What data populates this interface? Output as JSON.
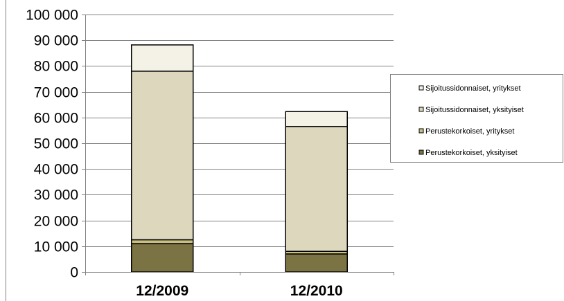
{
  "chart_data": {
    "type": "bar",
    "stacked": true,
    "categories": [
      "12/2009",
      "12/2010"
    ],
    "series": [
      {
        "name": "Perustekorkoiset, yksityiset",
        "color": "#7b7343",
        "values": [
          11000,
          7000
        ]
      },
      {
        "name": "Perustekorkoiset, yritykset",
        "color": "#c9bf80",
        "values": [
          1500,
          1000
        ]
      },
      {
        "name": "Sijoitussidonnaiset, yksityiset",
        "color": "#ddd8bd",
        "values": [
          65500,
          48500
        ]
      },
      {
        "name": "Sijoitussidonnaiset, yritykset",
        "color": "#f4f1e7",
        "values": [
          10200,
          5800
        ]
      }
    ],
    "ylim": [
      0,
      100000
    ],
    "yticks": [
      "0",
      "10 000",
      "20 000",
      "30 000",
      "40 000",
      "50 000",
      "60 000",
      "70 000",
      "80 000",
      "90 000",
      "100 000"
    ],
    "grid": true,
    "legend": "right"
  }
}
